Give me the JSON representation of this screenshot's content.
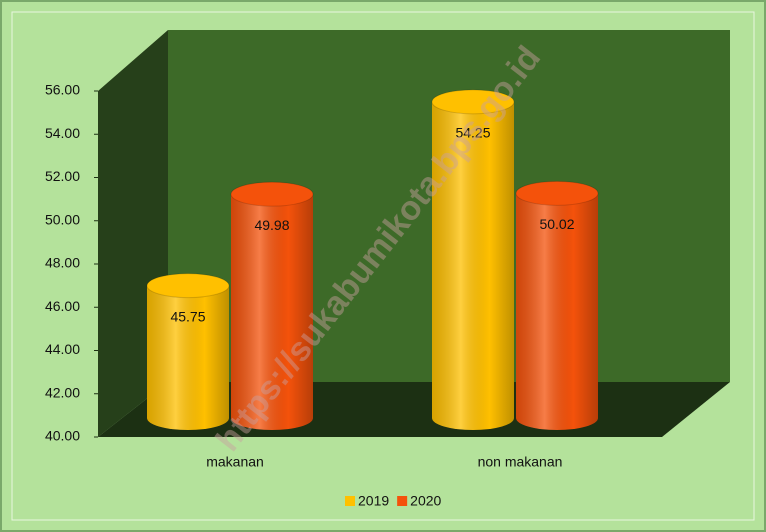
{
  "chart_data": {
    "type": "bar3d",
    "categories": [
      "makanan",
      "non makanan"
    ],
    "series": [
      {
        "name": "2019",
        "color": "#ffc000",
        "values": [
          45.75,
          54.25
        ]
      },
      {
        "name": "2020",
        "color": "#f4520b",
        "values": [
          49.98,
          50.02
        ]
      }
    ],
    "ylim": [
      40,
      56
    ],
    "yticks": [
      {
        "value": 40,
        "label": "40.00"
      },
      {
        "value": 42,
        "label": "42.00"
      },
      {
        "value": 44,
        "label": "44.00"
      },
      {
        "value": 46,
        "label": "46.00"
      },
      {
        "value": 48,
        "label": "48.00"
      },
      {
        "value": 50,
        "label": "50.00"
      },
      {
        "value": 52,
        "label": "52.00"
      },
      {
        "value": 54,
        "label": "54.00"
      },
      {
        "value": 56,
        "label": "56.00"
      }
    ],
    "legend": "bottom",
    "watermark": "https://sukabumikota.bps.go.id"
  }
}
